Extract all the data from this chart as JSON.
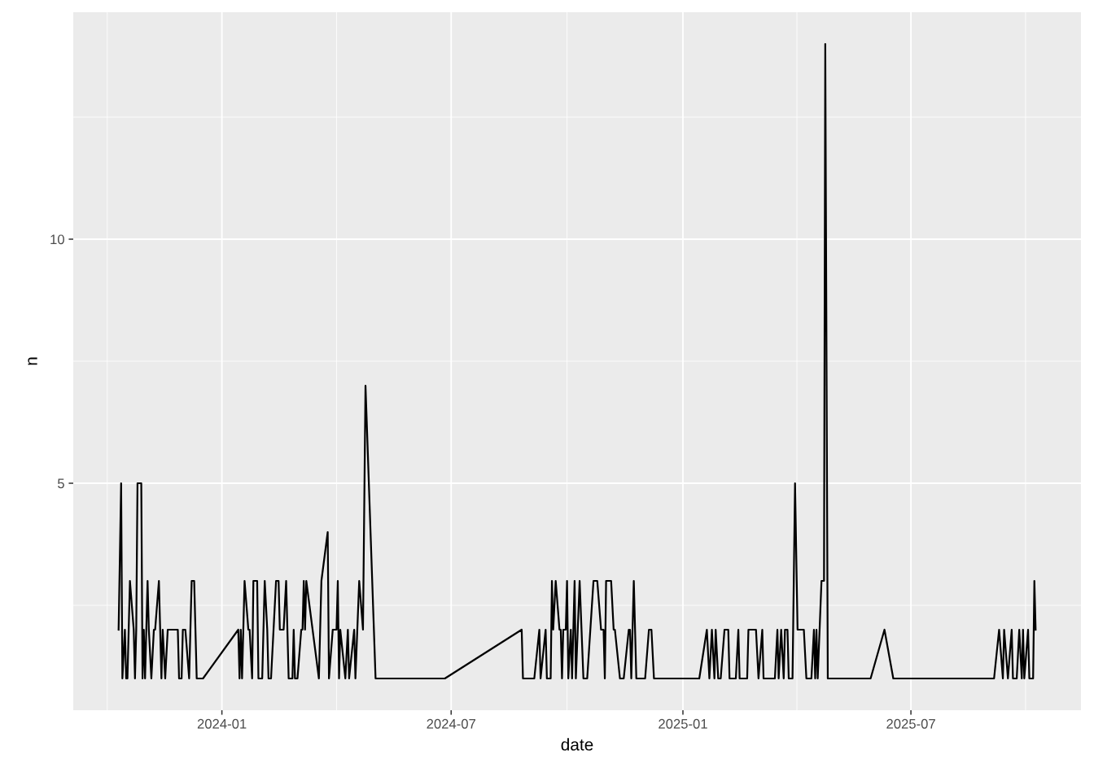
{
  "chart_data": {
    "type": "line",
    "xlabel": "date",
    "ylabel": "n",
    "xlim": [
      "2023-09-05",
      "2025-11-13"
    ],
    "xticks": [
      {
        "value": "2024-01-01",
        "label": "2024-01"
      },
      {
        "value": "2024-07-01",
        "label": "2024-07"
      },
      {
        "value": "2025-01-01",
        "label": "2025-01"
      },
      {
        "value": "2025-07-01",
        "label": "2025-07"
      }
    ],
    "ylim": [
      0.35,
      14.65
    ],
    "yticks": [
      5,
      10
    ],
    "grid": true,
    "marker": "none",
    "line_style": "solid",
    "series": [
      {
        "color": "#000000",
        "x": [
          "2023-10-11",
          "2023-10-13",
          "2023-10-14",
          "2023-10-16",
          "2023-10-17",
          "2023-10-18",
          "2023-10-20",
          "2023-10-23",
          "2023-10-24",
          "2023-10-25",
          "2023-10-26",
          "2023-10-29",
          "2023-10-30",
          "2023-10-31",
          "2023-11-01",
          "2023-11-03",
          "2023-11-04",
          "2023-11-06",
          "2023-11-08",
          "2023-11-09",
          "2023-11-12",
          "2023-11-14",
          "2023-11-15",
          "2023-11-17",
          "2023-11-19",
          "2023-11-27",
          "2023-11-28",
          "2023-11-30",
          "2023-12-01",
          "2023-12-03",
          "2023-12-06",
          "2023-12-08",
          "2023-12-10",
          "2023-12-12",
          "2023-12-17",
          "2024-01-14",
          "2024-01-15",
          "2024-01-16",
          "2024-01-17",
          "2024-01-19",
          "2024-01-22",
          "2024-01-23",
          "2024-01-25",
          "2024-01-26",
          "2024-01-29",
          "2024-01-30",
          "2024-02-02",
          "2024-02-04",
          "2024-02-06",
          "2024-02-07",
          "2024-02-09",
          "2024-02-13",
          "2024-02-15",
          "2024-02-16",
          "2024-02-19",
          "2024-02-21",
          "2024-02-23",
          "2024-02-26",
          "2024-02-27",
          "2024-02-28",
          "2024-03-01",
          "2024-03-04",
          "2024-03-05",
          "2024-03-06",
          "2024-03-07",
          "2024-03-08",
          "2024-03-18",
          "2024-03-20",
          "2024-03-25",
          "2024-03-26",
          "2024-03-29",
          "2024-04-01",
          "2024-04-02",
          "2024-04-03",
          "2024-04-04",
          "2024-04-08",
          "2024-04-10",
          "2024-04-11",
          "2024-04-15",
          "2024-04-16",
          "2024-04-19",
          "2024-04-22",
          "2024-04-24",
          "2024-05-02",
          "2024-06-26",
          "2024-08-26",
          "2024-08-27",
          "2024-09-05",
          "2024-09-09",
          "2024-09-10",
          "2024-09-14",
          "2024-09-15",
          "2024-09-18",
          "2024-09-19",
          "2024-09-20",
          "2024-09-22",
          "2024-09-25",
          "2024-09-26",
          "2024-09-27",
          "2024-09-28",
          "2024-09-30",
          "2024-10-01",
          "2024-10-02",
          "2024-10-04",
          "2024-10-05",
          "2024-10-07",
          "2024-10-08",
          "2024-10-11",
          "2024-10-14",
          "2024-10-17",
          "2024-10-22",
          "2024-10-25",
          "2024-10-28",
          "2024-10-30",
          "2024-10-31",
          "2024-11-01",
          "2024-11-05",
          "2024-11-07",
          "2024-11-08",
          "2024-11-12",
          "2024-11-15",
          "2024-11-19",
          "2024-11-20",
          "2024-11-21",
          "2024-11-23",
          "2024-11-25",
          "2024-12-02",
          "2024-12-05",
          "2024-12-07",
          "2024-12-09",
          "2025-01-14",
          "2025-01-20",
          "2025-01-22",
          "2025-01-24",
          "2025-01-26",
          "2025-01-27",
          "2025-01-29",
          "2025-01-31",
          "2025-02-03",
          "2025-02-06",
          "2025-02-07",
          "2025-02-12",
          "2025-02-14",
          "2025-02-15",
          "2025-02-21",
          "2025-02-22",
          "2025-02-24",
          "2025-02-28",
          "2025-03-02",
          "2025-03-05",
          "2025-03-06",
          "2025-03-15",
          "2025-03-17",
          "2025-03-18",
          "2025-03-20",
          "2025-03-22",
          "2025-03-23",
          "2025-03-25",
          "2025-03-26",
          "2025-03-29",
          "2025-03-31",
          "2025-04-02",
          "2025-04-07",
          "2025-04-09",
          "2025-04-13",
          "2025-04-15",
          "2025-04-16",
          "2025-04-17",
          "2025-04-18",
          "2025-04-21",
          "2025-04-23",
          "2025-04-24",
          "2025-04-26",
          "2025-05-30",
          "2025-06-10",
          "2025-06-17",
          "2025-09-05",
          "2025-09-09",
          "2025-09-12",
          "2025-09-13",
          "2025-09-16",
          "2025-09-19",
          "2025-09-20",
          "2025-09-23",
          "2025-09-25",
          "2025-09-27",
          "2025-09-28",
          "2025-09-29",
          "2025-10-02",
          "2025-10-03",
          "2025-10-06",
          "2025-10-07",
          "2025-10-08"
        ],
        "values": [
          2,
          5,
          1,
          2,
          1,
          1,
          3,
          2,
          1,
          2,
          5,
          5,
          1,
          2,
          1,
          3,
          2,
          1,
          2,
          2,
          3,
          1,
          2,
          1,
          2,
          2,
          1,
          1,
          2,
          2,
          1,
          3,
          3,
          1,
          1,
          2,
          1,
          2,
          1,
          3,
          2,
          2,
          1,
          3,
          3,
          1,
          1,
          3,
          2,
          1,
          1,
          3,
          3,
          2,
          2,
          3,
          1,
          1,
          2,
          1,
          1,
          2,
          2,
          3,
          2,
          3,
          1,
          3,
          4,
          1,
          2,
          2,
          3,
          1,
          2,
          1,
          2,
          1,
          2,
          1,
          3,
          2,
          7,
          1,
          1,
          2,
          1,
          1,
          2,
          1,
          2,
          1,
          1,
          3,
          2,
          3,
          2,
          2,
          1,
          2,
          2,
          3,
          1,
          2,
          1,
          3,
          1,
          3,
          1,
          1,
          3,
          3,
          2,
          2,
          1,
          3,
          3,
          2,
          2,
          1,
          1,
          2,
          2,
          1,
          3,
          1,
          1,
          2,
          2,
          1,
          1,
          2,
          1,
          2,
          1,
          2,
          1,
          1,
          2,
          2,
          1,
          1,
          2,
          1,
          1,
          2,
          2,
          2,
          1,
          2,
          1,
          1,
          2,
          1,
          2,
          1,
          2,
          2,
          1,
          1,
          5,
          2,
          2,
          1,
          1,
          2,
          1,
          2,
          1,
          3,
          3,
          14,
          1,
          1,
          2,
          1,
          1,
          2,
          1,
          2,
          1,
          2,
          1,
          1,
          2,
          1,
          2,
          1,
          2,
          1,
          1,
          3,
          2
        ]
      }
    ]
  }
}
